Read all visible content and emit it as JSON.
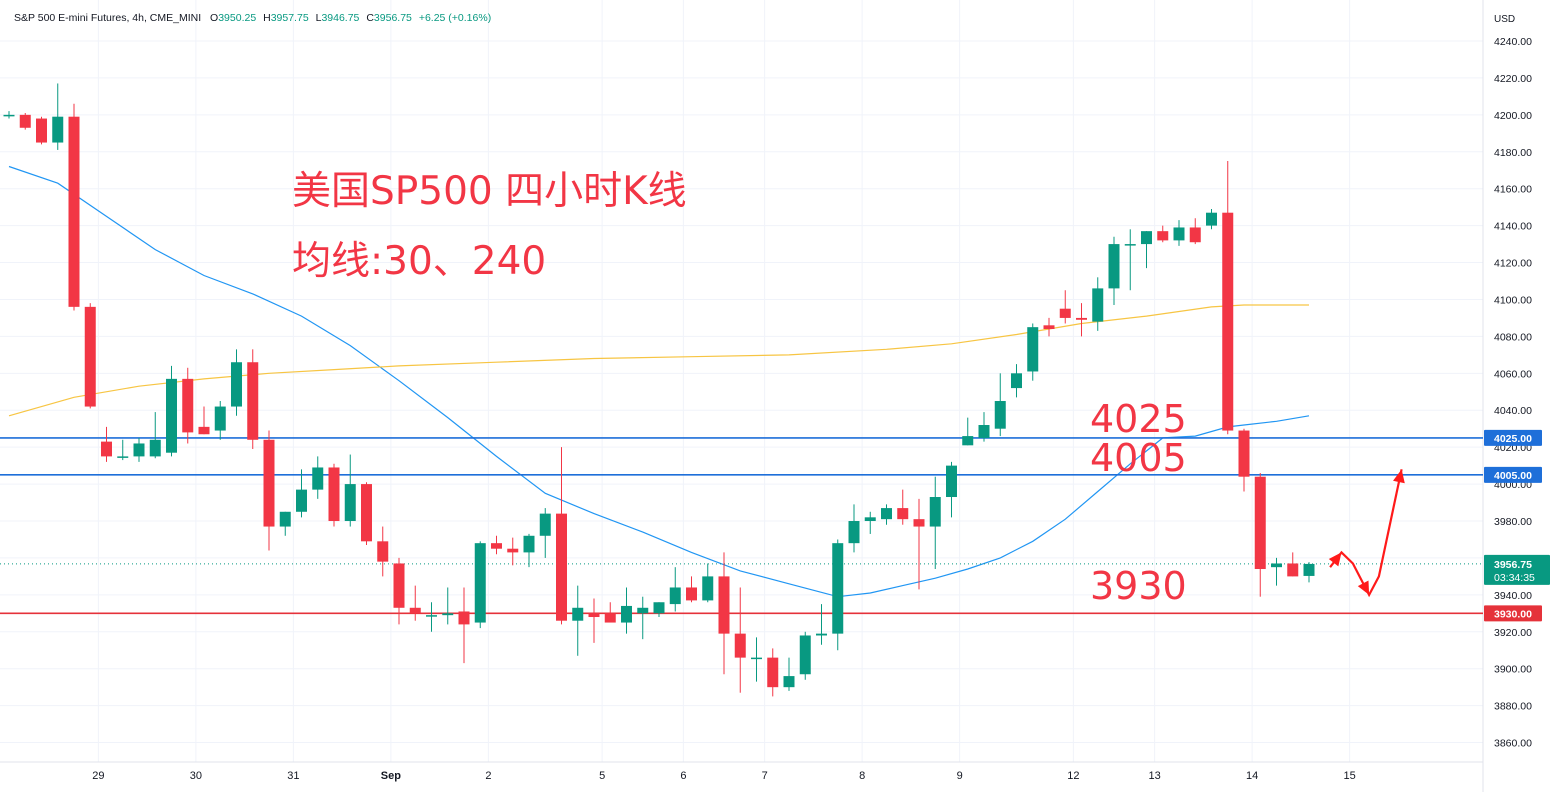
{
  "legend": {
    "symbol": "S&P 500 E-mini Futures, 4h, CME_MINI",
    "o_label": "O",
    "o": "3950.25",
    "h_label": "H",
    "h": "3957.75",
    "l_label": "L",
    "l": "3946.75",
    "c_label": "C",
    "c": "3956.75",
    "change": "+6.25 (+0.16%)"
  },
  "currency": "USD",
  "annotations": {
    "title_line1": "美国SP500 四小时K线",
    "title_line2": "均线:30、240",
    "level_4025": "4025",
    "level_4005": "4005",
    "level_3930": "3930"
  },
  "colors": {
    "up": "#089981",
    "down": "#f23645",
    "ma30": "#2196f3",
    "ma240": "#f7c543",
    "blue_line": "#1e6fd9",
    "red_line": "#e5323a",
    "grid": "#f0f3fa",
    "axis_text": "#131722"
  },
  "chart_data": {
    "type": "candlestick",
    "title": "",
    "ylim": [
      3845,
      4250
    ],
    "y_ticks": [
      "4240.00",
      "4220.00",
      "4200.00",
      "4180.00",
      "4160.00",
      "4140.00",
      "4120.00",
      "4100.00",
      "4080.00",
      "4060.00",
      "4040.00",
      "4020.00",
      "4000.00",
      "3980.00",
      "3960.00",
      "3940.00",
      "3920.00",
      "3900.00",
      "3880.00",
      "3860.00"
    ],
    "x_ticks": [
      {
        "label": "29",
        "bar": 5.5
      },
      {
        "label": "30",
        "bar": 11.5
      },
      {
        "label": "31",
        "bar": 17.5
      },
      {
        "label": "Sep",
        "bar": 23.5
      },
      {
        "label": "2",
        "bar": 29.5
      },
      {
        "label": "5",
        "bar": 36.5
      },
      {
        "label": "6",
        "bar": 41.5
      },
      {
        "label": "7",
        "bar": 46.5
      },
      {
        "label": "8",
        "bar": 52.5
      },
      {
        "label": "9",
        "bar": 58.5
      },
      {
        "label": "12",
        "bar": 65.5
      },
      {
        "label": "13",
        "bar": 70.5
      },
      {
        "label": "14",
        "bar": 76.5
      },
      {
        "label": "15",
        "bar": 82.5
      }
    ],
    "candles": [
      {
        "o": 4200,
        "h": 4202,
        "l": 4198,
        "c": 4200
      },
      {
        "o": 4200,
        "h": 4201,
        "l": 4192,
        "c": 4193
      },
      {
        "o": 4198,
        "h": 4199,
        "l": 4184,
        "c": 4185
      },
      {
        "o": 4185,
        "h": 4217,
        "l": 4181,
        "c": 4199
      },
      {
        "o": 4199,
        "h": 4206,
        "l": 4094,
        "c": 4096
      },
      {
        "o": 4096,
        "h": 4098,
        "l": 4041,
        "c": 4042
      },
      {
        "o": 4023,
        "h": 4031,
        "l": 4012,
        "c": 4015
      },
      {
        "o": 4015,
        "h": 4024,
        "l": 4013,
        "c": 4015
      },
      {
        "o": 4015,
        "h": 4025,
        "l": 4012,
        "c": 4022
      },
      {
        "o": 4015,
        "h": 4039,
        "l": 4014,
        "c": 4024
      },
      {
        "o": 4017,
        "h": 4064,
        "l": 4015,
        "c": 4057
      },
      {
        "o": 4057,
        "h": 4063,
        "l": 4022,
        "c": 4028
      },
      {
        "o": 4031,
        "h": 4042,
        "l": 4027,
        "c": 4027
      },
      {
        "o": 4029,
        "h": 4045,
        "l": 4024,
        "c": 4042
      },
      {
        "o": 4042,
        "h": 4073,
        "l": 4037,
        "c": 4066
      },
      {
        "o": 4066,
        "h": 4073,
        "l": 4019,
        "c": 4024
      },
      {
        "o": 4024,
        "h": 4029,
        "l": 3964,
        "c": 3977
      },
      {
        "o": 3977,
        "h": 3985,
        "l": 3972,
        "c": 3985
      },
      {
        "o": 3985,
        "h": 4008,
        "l": 3982,
        "c": 3997
      },
      {
        "o": 3997,
        "h": 4015,
        "l": 3992,
        "c": 4009
      },
      {
        "o": 4009,
        "h": 4011,
        "l": 3977,
        "c": 3980
      },
      {
        "o": 3980,
        "h": 4016,
        "l": 3977,
        "c": 4000
      },
      {
        "o": 4000,
        "h": 4001,
        "l": 3967,
        "c": 3969
      },
      {
        "o": 3969,
        "h": 3977,
        "l": 3950,
        "c": 3958
      },
      {
        "o": 3957,
        "h": 3960,
        "l": 3924,
        "c": 3933
      },
      {
        "o": 3933,
        "h": 3945,
        "l": 3926,
        "c": 3930
      },
      {
        "o": 3929,
        "h": 3936,
        "l": 3920,
        "c": 3929
      },
      {
        "o": 3929,
        "h": 3944,
        "l": 3924,
        "c": 3930
      },
      {
        "o": 3931,
        "h": 3944,
        "l": 3903,
        "c": 3924
      },
      {
        "o": 3925,
        "h": 3969,
        "l": 3922,
        "c": 3968
      },
      {
        "o": 3968,
        "h": 3972,
        "l": 3962,
        "c": 3965
      },
      {
        "o": 3965,
        "h": 3971,
        "l": 3956,
        "c": 3963
      },
      {
        "o": 3963,
        "h": 3973,
        "l": 3955,
        "c": 3972
      },
      {
        "o": 3972,
        "h": 3987,
        "l": 3960,
        "c": 3984
      },
      {
        "o": 3984,
        "h": 4020,
        "l": 3924,
        "c": 3926
      },
      {
        "o": 3926,
        "h": 3945,
        "l": 3907,
        "c": 3933
      },
      {
        "o": 3930,
        "h": 3938,
        "l": 3914,
        "c": 3928
      },
      {
        "o": 3930,
        "h": 3936,
        "l": 3926,
        "c": 3925
      },
      {
        "o": 3925,
        "h": 3944,
        "l": 3919,
        "c": 3934
      },
      {
        "o": 3930,
        "h": 3939,
        "l": 3916,
        "c": 3933
      },
      {
        "o": 3930,
        "h": 3936,
        "l": 3928,
        "c": 3936
      },
      {
        "o": 3935,
        "h": 3955,
        "l": 3931,
        "c": 3944
      },
      {
        "o": 3944,
        "h": 3950,
        "l": 3936,
        "c": 3937
      },
      {
        "o": 3937,
        "h": 3957,
        "l": 3936,
        "c": 3950
      },
      {
        "o": 3950,
        "h": 3963,
        "l": 3897,
        "c": 3919
      },
      {
        "o": 3919,
        "h": 3944,
        "l": 3887,
        "c": 3906
      },
      {
        "o": 3906,
        "h": 3917,
        "l": 3893,
        "c": 3906
      },
      {
        "o": 3906,
        "h": 3911,
        "l": 3885,
        "c": 3890
      },
      {
        "o": 3890,
        "h": 3906,
        "l": 3888,
        "c": 3896
      },
      {
        "o": 3897,
        "h": 3920,
        "l": 3894,
        "c": 3918
      },
      {
        "o": 3918,
        "h": 3935,
        "l": 3913,
        "c": 3919
      },
      {
        "o": 3919,
        "h": 3970,
        "l": 3910,
        "c": 3968
      },
      {
        "o": 3968,
        "h": 3989,
        "l": 3963,
        "c": 3980
      },
      {
        "o": 3980,
        "h": 3985,
        "l": 3973,
        "c": 3982
      },
      {
        "o": 3981,
        "h": 3989,
        "l": 3978,
        "c": 3987
      },
      {
        "o": 3987,
        "h": 3997,
        "l": 3978,
        "c": 3981
      },
      {
        "o": 3981,
        "h": 3992,
        "l": 3943,
        "c": 3977
      },
      {
        "o": 3977,
        "h": 4004,
        "l": 3954,
        "c": 3993
      },
      {
        "o": 3993,
        "h": 4012,
        "l": 3982,
        "c": 4010
      },
      {
        "o": 4021,
        "h": 4036,
        "l": 4021,
        "c": 4026
      },
      {
        "o": 4025,
        "h": 4039,
        "l": 4023,
        "c": 4032
      },
      {
        "o": 4030,
        "h": 4060,
        "l": 4026,
        "c": 4045
      },
      {
        "o": 4052,
        "h": 4065,
        "l": 4047,
        "c": 4060
      },
      {
        "o": 4061,
        "h": 4087,
        "l": 4056,
        "c": 4085
      },
      {
        "o": 4086,
        "h": 4090,
        "l": 4080,
        "c": 4084
      },
      {
        "o": 4095,
        "h": 4105,
        "l": 4087,
        "c": 4090
      },
      {
        "o": 4090,
        "h": 4098,
        "l": 4080,
        "c": 4089
      },
      {
        "o": 4088,
        "h": 4112,
        "l": 4083,
        "c": 4106
      },
      {
        "o": 4106,
        "h": 4134,
        "l": 4097,
        "c": 4130
      },
      {
        "o": 4130,
        "h": 4138,
        "l": 4105,
        "c": 4130
      },
      {
        "o": 4130,
        "h": 4137,
        "l": 4117,
        "c": 4137
      },
      {
        "o": 4137,
        "h": 4140,
        "l": 4131,
        "c": 4132
      },
      {
        "o": 4132,
        "h": 4143,
        "l": 4129,
        "c": 4139
      },
      {
        "o": 4139,
        "h": 4144,
        "l": 4130,
        "c": 4131
      },
      {
        "o": 4140,
        "h": 4149,
        "l": 4138,
        "c": 4147
      },
      {
        "o": 4147,
        "h": 4175,
        "l": 4027,
        "c": 4029
      },
      {
        "o": 4029,
        "h": 4030,
        "l": 3996,
        "c": 4004
      },
      {
        "o": 4004,
        "h": 4006,
        "l": 3939,
        "c": 3954
      },
      {
        "o": 3955,
        "h": 3960,
        "l": 3945,
        "c": 3957
      },
      {
        "o": 3957,
        "h": 3963,
        "l": 3950,
        "c": 3950
      },
      {
        "o": 3950.25,
        "h": 3957.75,
        "l": 3946.75,
        "c": 3956.75
      }
    ],
    "series": [
      {
        "name": "",
        "kind": "ma30",
        "points": [
          [
            0,
            4172
          ],
          [
            3,
            4163
          ],
          [
            6,
            4145
          ],
          [
            9,
            4127
          ],
          [
            12,
            4113
          ],
          [
            15,
            4103
          ],
          [
            18,
            4091
          ],
          [
            21,
            4075
          ],
          [
            24,
            4056
          ],
          [
            27,
            4036
          ],
          [
            30,
            4015
          ],
          [
            33,
            3995
          ],
          [
            36,
            3984
          ],
          [
            39,
            3974
          ],
          [
            42,
            3963
          ],
          [
            45,
            3953
          ],
          [
            48,
            3946
          ],
          [
            51,
            3939
          ],
          [
            53,
            3941
          ],
          [
            55,
            3945
          ],
          [
            57,
            3949
          ],
          [
            59,
            3954
          ],
          [
            61,
            3960
          ],
          [
            63,
            3969
          ],
          [
            65,
            3981
          ],
          [
            67,
            3996
          ],
          [
            69,
            4011
          ],
          [
            71,
            4025
          ],
          [
            73,
            4026
          ],
          [
            75,
            4031
          ],
          [
            76,
            4032
          ],
          [
            78,
            4034
          ],
          [
            80,
            4037
          ]
        ]
      },
      {
        "name": "",
        "kind": "ma240",
        "points": [
          [
            0,
            4037
          ],
          [
            4,
            4047
          ],
          [
            8,
            4053
          ],
          [
            12,
            4057
          ],
          [
            16,
            4060
          ],
          [
            20,
            4062
          ],
          [
            24,
            4064
          ],
          [
            30,
            4066
          ],
          [
            36,
            4068
          ],
          [
            42,
            4069
          ],
          [
            48,
            4070
          ],
          [
            54,
            4073
          ],
          [
            58,
            4076
          ],
          [
            62,
            4081
          ],
          [
            66,
            4087
          ],
          [
            70,
            4091
          ],
          [
            74,
            4096
          ],
          [
            76,
            4097
          ],
          [
            80,
            4097
          ]
        ]
      }
    ],
    "levels": [
      {
        "value": 4025,
        "label": "4025.00",
        "kind": "blue"
      },
      {
        "value": 4005,
        "label": "4005.00",
        "kind": "blue"
      },
      {
        "value": 3930,
        "label": "3930.00",
        "kind": "red"
      }
    ],
    "last_price": {
      "value": 3956.75,
      "label": "3956.75",
      "countdown": "03:34:35"
    },
    "projection": [
      [
        81.3,
        3955
      ],
      [
        82,
        3963
      ],
      [
        82.7,
        3957
      ],
      [
        83.7,
        3940
      ],
      [
        84.3,
        3950
      ],
      [
        85.7,
        4008
      ]
    ]
  }
}
